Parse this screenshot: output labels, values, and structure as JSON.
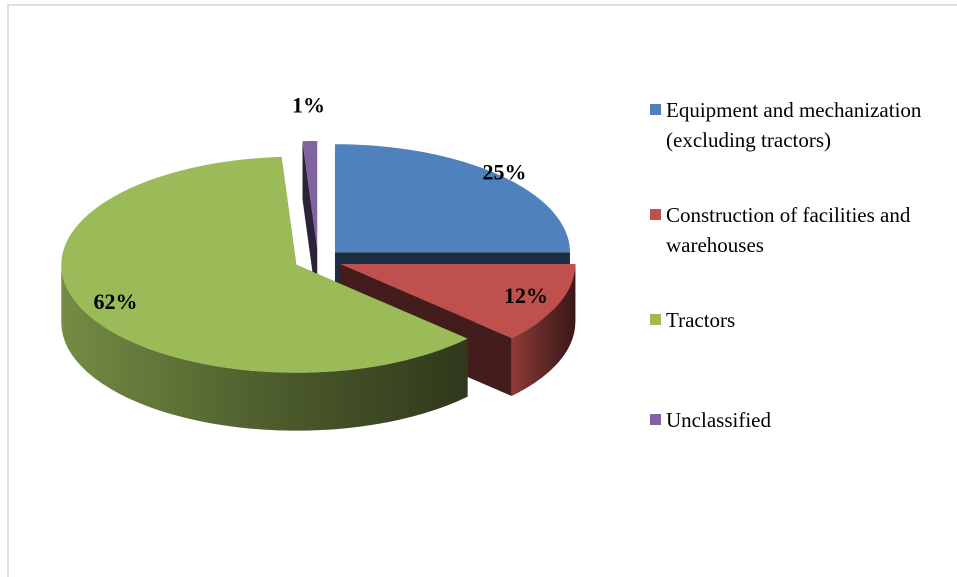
{
  "chart_data": {
    "type": "pie",
    "categories": [
      "Equipment and mechanization (excluding tractors)",
      "Construction of facilities and warehouses",
      "Tractors",
      "Unclassified"
    ],
    "values": [
      25,
      12,
      62,
      1
    ],
    "value_labels": [
      "25%",
      "12%",
      "62%",
      "1%"
    ],
    "colors": [
      "#4f81bd",
      "#c0504d",
      "#9bbb59",
      "#8064a2"
    ],
    "legend": "right"
  }
}
